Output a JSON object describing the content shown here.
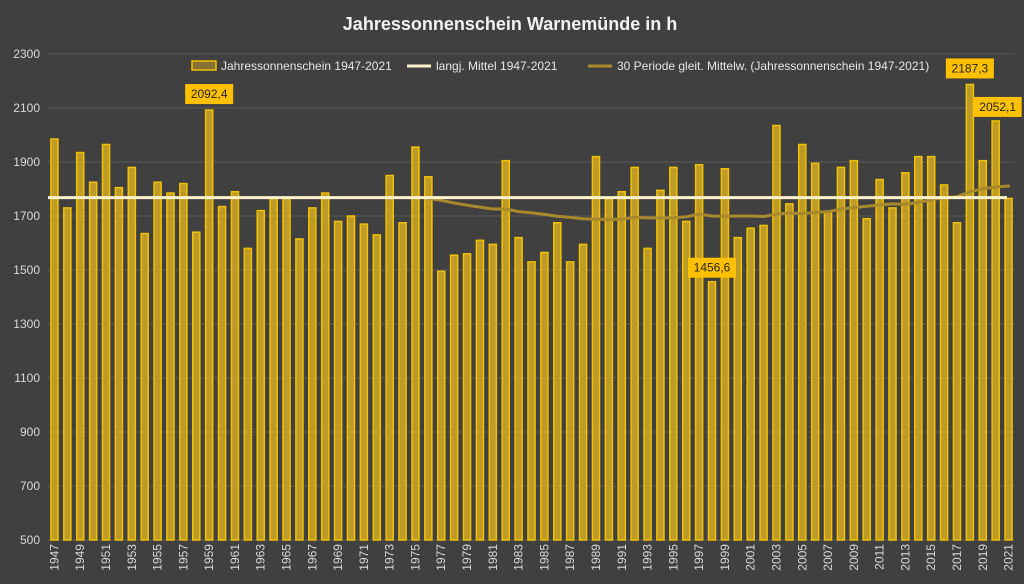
{
  "chart_data": {
    "type": "bar",
    "title": "Jahressonnenschein Warnemünde in h",
    "xlabel": "",
    "ylabel": "",
    "ylim": [
      500,
      2300
    ],
    "yticks": [
      500,
      700,
      900,
      1100,
      1300,
      1500,
      1700,
      1900,
      2100,
      2300
    ],
    "categories": [
      "1947",
      "1948",
      "1949",
      "1950",
      "1951",
      "1952",
      "1953",
      "1954",
      "1955",
      "1956",
      "1957",
      "1958",
      "1959",
      "1960",
      "1961",
      "1962",
      "1963",
      "1964",
      "1965",
      "1966",
      "1967",
      "1968",
      "1969",
      "1970",
      "1971",
      "1972",
      "1973",
      "1974",
      "1975",
      "1976",
      "1977",
      "1978",
      "1979",
      "1980",
      "1981",
      "1982",
      "1983",
      "1984",
      "1985",
      "1986",
      "1987",
      "1988",
      "1989",
      "1990",
      "1991",
      "1992",
      "1993",
      "1994",
      "1995",
      "1996",
      "1997",
      "1998",
      "1999",
      "2000",
      "2001",
      "2002",
      "2003",
      "2004",
      "2005",
      "2006",
      "2007",
      "2008",
      "2009",
      "2010",
      "2011",
      "2012",
      "2013",
      "2014",
      "2015",
      "2016",
      "2017",
      "2018",
      "2019",
      "2020",
      "2021"
    ],
    "grid": true,
    "legend_position": "top",
    "series": [
      {
        "name": "Jahressonnenschein 1947-2021",
        "kind": "bar",
        "values": [
          1985,
          1730,
          1935,
          1825,
          1965,
          1805,
          1880,
          1635,
          1825,
          1785,
          1820,
          1640,
          2092.4,
          1735,
          1790,
          1580,
          1720,
          1765,
          1765,
          1615,
          1730,
          1785,
          1680,
          1700,
          1670,
          1630,
          1850,
          1675,
          1955,
          1845,
          1495,
          1555,
          1560,
          1610,
          1595,
          1905,
          1620,
          1530,
          1565,
          1675,
          1530,
          1595,
          1920,
          1765,
          1790,
          1880,
          1580,
          1795,
          1880,
          1680,
          1890,
          1456.6,
          1875,
          1620,
          1655,
          1665,
          2035,
          1745,
          1965,
          1895,
          1715,
          1880,
          1905,
          1690,
          1835,
          1730,
          1860,
          1920,
          1920,
          1815,
          1675,
          2187.3,
          1905,
          2052.1,
          1765
        ]
      },
      {
        "name": "langj. Mittel 1947-2021",
        "kind": "line",
        "value": 1768
      },
      {
        "name": "30 Periode gleit. Mittelw. (Jahressonnenschein 1947-2021)",
        "kind": "line",
        "x": [
          "1976",
          "1977",
          "1978",
          "1979",
          "1980",
          "1981",
          "1982",
          "1983",
          "1984",
          "1985",
          "1986",
          "1987",
          "1988",
          "1989",
          "1990",
          "1991",
          "1992",
          "1993",
          "1994",
          "1995",
          "1996",
          "1997",
          "1998",
          "1999",
          "2000",
          "2001",
          "2002",
          "2003",
          "2004",
          "2005",
          "2006",
          "2007",
          "2008",
          "2009",
          "2010",
          "2011",
          "2012",
          "2013",
          "2014",
          "2015",
          "2016",
          "2017",
          "2018",
          "2019",
          "2020",
          "2021"
        ],
        "values": [
          1765,
          1758,
          1748,
          1740,
          1733,
          1726,
          1726,
          1716,
          1712,
          1706,
          1699,
          1695,
          1690,
          1688,
          1687,
          1688,
          1695,
          1693,
          1693,
          1693,
          1697,
          1707,
          1700,
          1699,
          1700,
          1700,
          1698,
          1707,
          1711,
          1709,
          1713,
          1716,
          1726,
          1731,
          1736,
          1741,
          1745,
          1743,
          1750,
          1760,
          1768,
          1771,
          1790,
          1801,
          1807,
          1811
        ]
      }
    ],
    "annotations": [
      {
        "label": "2092,4",
        "year": "1959",
        "value": 2092.4
      },
      {
        "label": "1456,6",
        "year": "1998",
        "value": 1456.6
      },
      {
        "label": "2187,3",
        "year": "2018",
        "value": 2187.3
      },
      {
        "label": "2052,1",
        "year": "2020",
        "value": 2052.1
      }
    ],
    "colors": {
      "background": "#404040",
      "grid": "#5a5a5a",
      "bar_fill": "#c9a227",
      "bar_stroke": "#f2c200",
      "mean_line": "#fff2cc",
      "moving_avg": "#a88a2c",
      "annotation_bg": "#ffc000"
    }
  }
}
